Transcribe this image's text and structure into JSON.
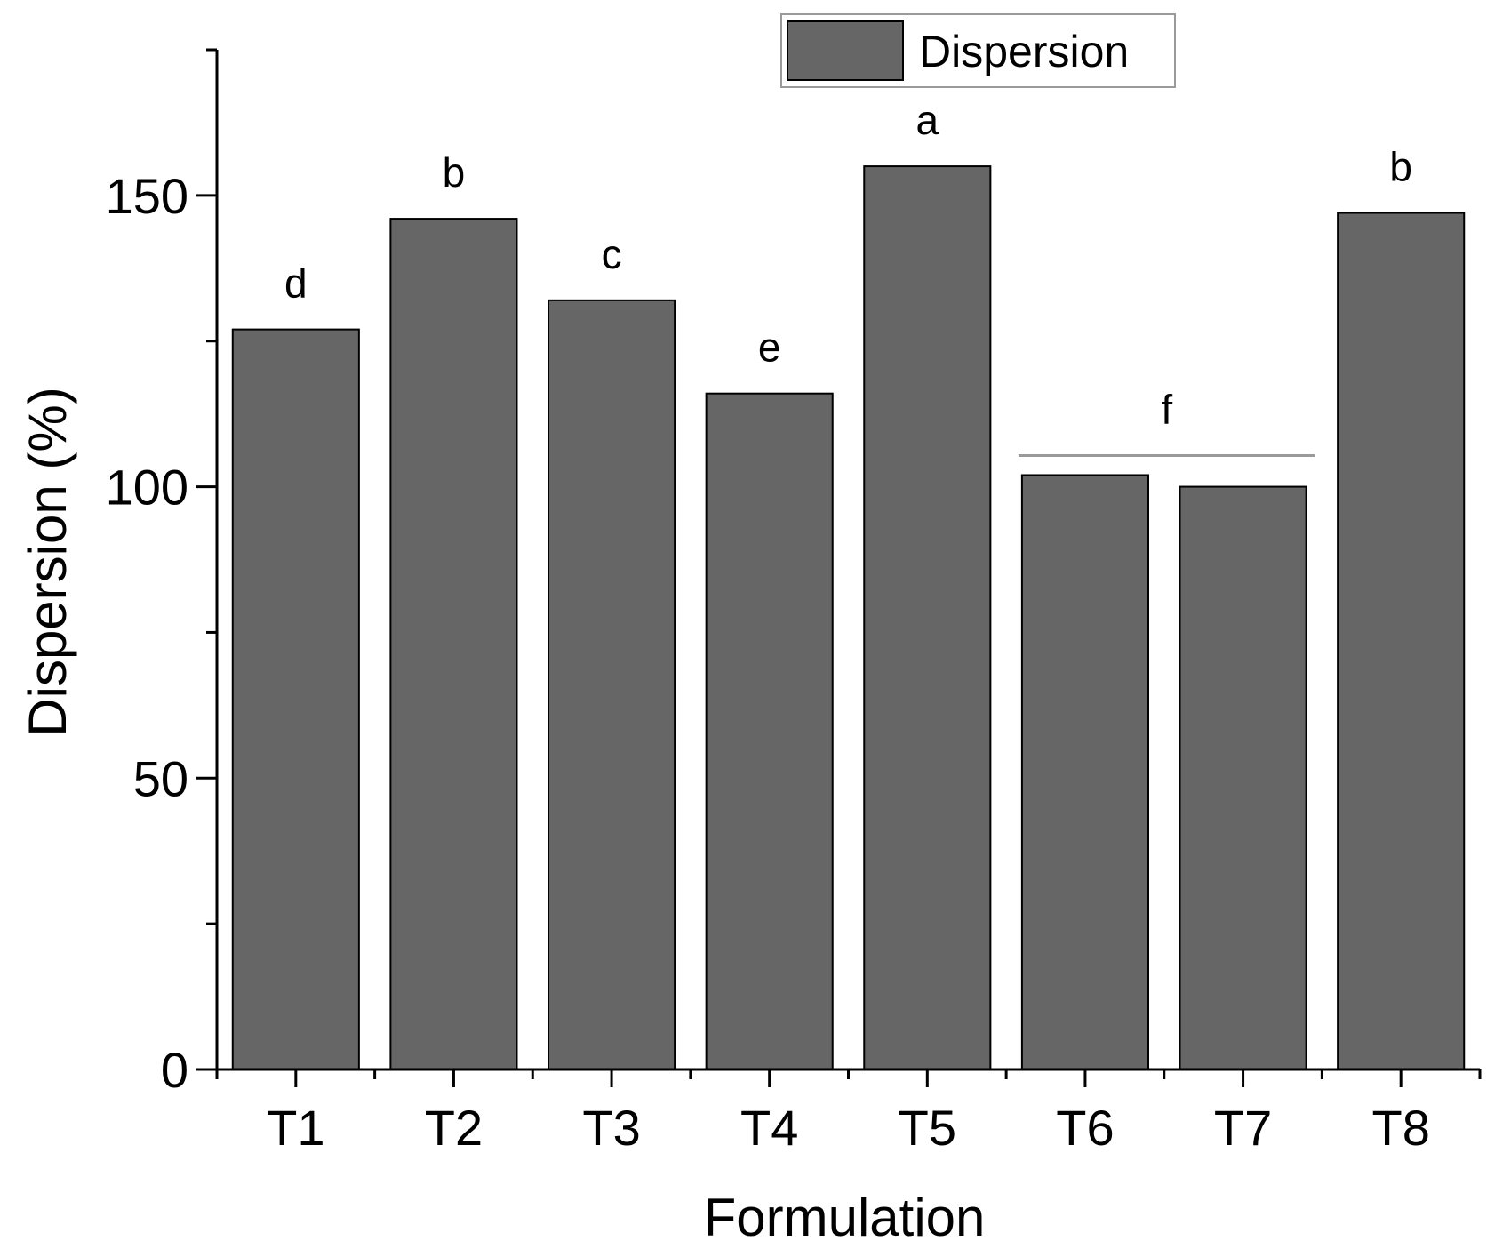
{
  "chart_data": {
    "type": "bar",
    "xlabel": "Formulation",
    "ylabel": "Dispersion (%)",
    "categories": [
      "T1",
      "T2",
      "T3",
      "T4",
      "T5",
      "T6",
      "T7",
      "T8"
    ],
    "series": [
      {
        "name": "Dispersion",
        "values": [
          127,
          146,
          132,
          116,
          155,
          102,
          100,
          147
        ]
      }
    ],
    "ylim": [
      0,
      175
    ],
    "yticks": [
      0,
      50,
      100,
      150
    ],
    "ytick_labels": [
      "0",
      "50",
      "100",
      "150"
    ],
    "minor_yticks": [
      25,
      75,
      125,
      175
    ],
    "significance_letters": [
      "d",
      "b",
      "c",
      "e",
      "a",
      "f",
      "f",
      "b"
    ],
    "group_annotations": [
      {
        "label": "f",
        "categories": [
          "T6",
          "T7"
        ]
      }
    ],
    "legend": {
      "position": "top-right",
      "entries": [
        "Dispersion"
      ]
    },
    "grid": false,
    "colors": {
      "bar_fill": "#666666",
      "bar_stroke": "#000000",
      "group_line": "#9a9a9a"
    }
  }
}
